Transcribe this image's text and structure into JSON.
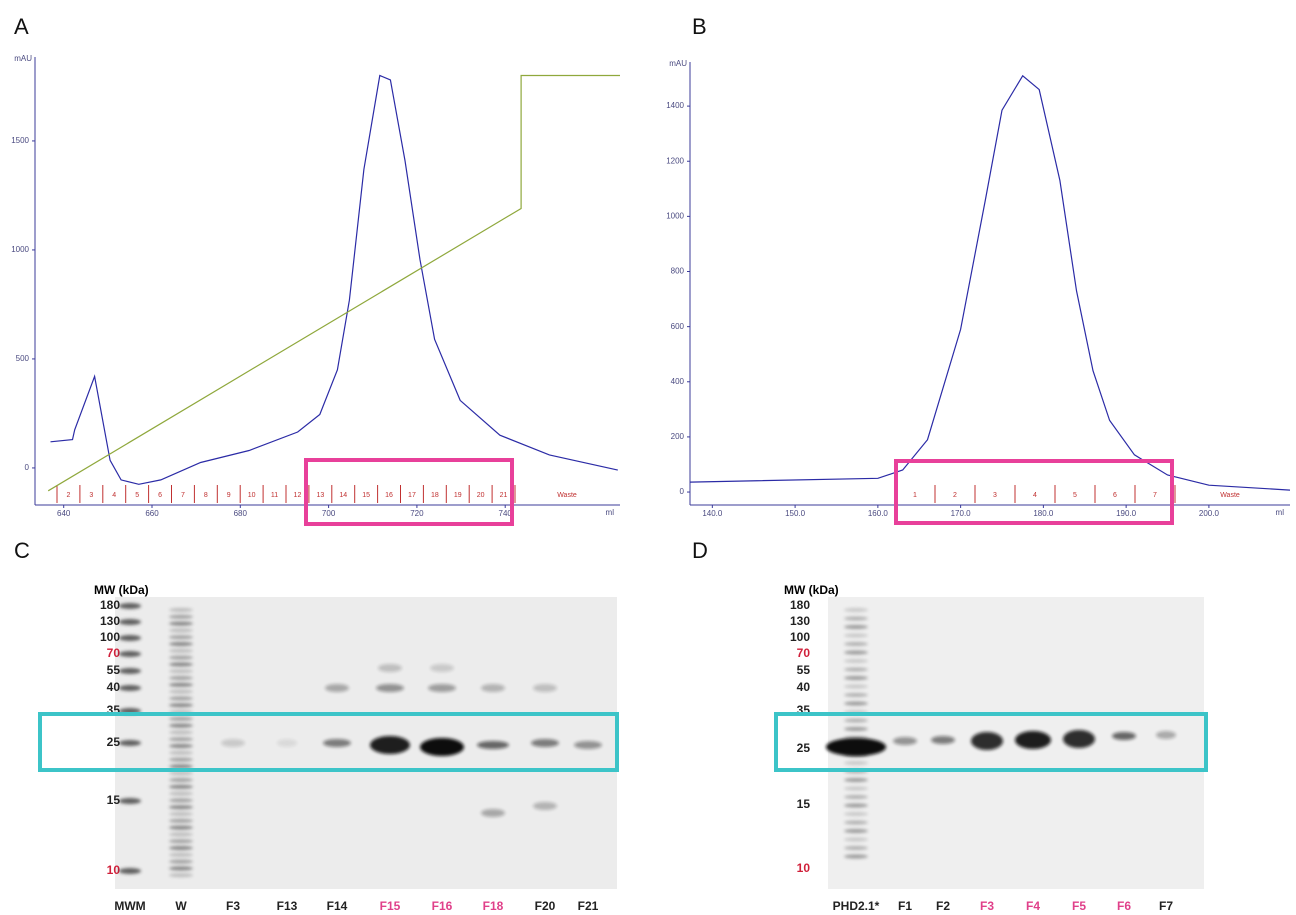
{
  "panel_labels": [
    "A",
    "B",
    "C",
    "D"
  ],
  "chart_data": [
    {
      "type": "line",
      "y_label": "mAU",
      "x_label": "ml",
      "xlim": [
        633.5,
        766
      ],
      "ylim": [
        -170,
        1885
      ],
      "xticks": [
        640,
        660,
        680,
        700,
        720,
        740
      ],
      "yticks": [
        0,
        500,
        1000,
        1500
      ],
      "fractions": [
        "2",
        "3",
        "4",
        "5",
        "6",
        "7",
        "8",
        "9",
        "10",
        "11",
        "12",
        "13",
        "14",
        "15",
        "16",
        "17",
        "18",
        "19",
        "20",
        "21",
        "Waste"
      ],
      "series": [
        {
          "color": "#2b2ba6",
          "x": [
            637,
            642,
            642.5,
            647,
            650.5,
            653,
            657,
            662,
            671,
            682,
            693,
            698,
            702,
            704.7,
            708,
            711.6,
            714,
            717.3,
            720.7,
            724,
            729.8,
            738.8,
            750,
            765.5
          ],
          "values": [
            120,
            130,
            175,
            420,
            35,
            -55,
            -75,
            -55,
            25,
            80,
            165,
            245,
            450,
            770,
            1370,
            1800,
            1780,
            1410,
            955,
            590,
            310,
            150,
            60,
            -10
          ]
        },
        {
          "color": "#8fa83c",
          "x": [
            636.5,
            743.6,
            743.6,
            766
          ],
          "values": [
            -105,
            1190,
            1800,
            1800
          ]
        }
      ]
    },
    {
      "type": "line",
      "y_label": "mAU",
      "x_label": "ml",
      "xlim": [
        137.3,
        209.8
      ],
      "ylim": [
        -47,
        1560
      ],
      "xticks": [
        {
          "value": 140,
          "label": "140.0"
        },
        {
          "value": 150,
          "label": "150.0"
        },
        {
          "value": 160,
          "label": "160.0"
        },
        {
          "value": 170,
          "label": "170.0"
        },
        {
          "value": 180,
          "label": "180.0"
        },
        {
          "value": 190,
          "label": "190.0"
        },
        {
          "value": 200,
          "label": "200.0"
        }
      ],
      "yticks": [
        0,
        200,
        400,
        600,
        800,
        1000,
        1200,
        1400
      ],
      "fractions": [
        "1",
        "2",
        "3",
        "4",
        "5",
        "6",
        "7",
        "Waste"
      ],
      "series": [
        {
          "color": "#2b2ba6",
          "x": [
            137.3,
            160,
            163,
            166,
            170,
            173,
            175,
            177.5,
            179.5,
            182,
            184,
            186,
            188,
            191,
            195,
            200,
            209.8
          ],
          "values": [
            36,
            50,
            80,
            190,
            590,
            1060,
            1385,
            1510,
            1460,
            1130,
            730,
            440,
            260,
            135,
            62,
            25,
            7
          ]
        }
      ]
    }
  ],
  "gels": [
    {
      "mw_title": "MW (kDa)",
      "mw_markers": [
        {
          "label": "180",
          "color": "#222"
        },
        {
          "label": "130",
          "color": "#222"
        },
        {
          "label": "100",
          "color": "#222"
        },
        {
          "label": "70",
          "color": "#d0203a"
        },
        {
          "label": "55",
          "color": "#222"
        },
        {
          "label": "40",
          "color": "#222"
        },
        {
          "label": "35",
          "color": "#222"
        },
        {
          "label": "25",
          "color": "#222"
        },
        {
          "label": "15",
          "color": "#222"
        },
        {
          "label": "10",
          "color": "#d0203a"
        }
      ],
      "lanes": [
        {
          "label": "MWM",
          "color": "#222"
        },
        {
          "label": "W",
          "color": "#222"
        },
        {
          "label": "F3",
          "color": "#222"
        },
        {
          "label": "F13",
          "color": "#222"
        },
        {
          "label": "F14",
          "color": "#222"
        },
        {
          "label": "F15",
          "color": "#e0408a"
        },
        {
          "label": "F16",
          "color": "#e0408a"
        },
        {
          "label": "F18",
          "color": "#e0408a"
        },
        {
          "label": "F20",
          "color": "#222"
        },
        {
          "label": "F21",
          "color": "#222"
        }
      ]
    },
    {
      "mw_title": "MW (kDa)",
      "mw_markers": [
        {
          "label": "180",
          "color": "#222"
        },
        {
          "label": "130",
          "color": "#222"
        },
        {
          "label": "100",
          "color": "#222"
        },
        {
          "label": "70",
          "color": "#d0203a"
        },
        {
          "label": "55",
          "color": "#222"
        },
        {
          "label": "40",
          "color": "#222"
        },
        {
          "label": "35",
          "color": "#222"
        },
        {
          "label": "25",
          "color": "#222"
        },
        {
          "label": "15",
          "color": "#222"
        },
        {
          "label": "10",
          "color": "#d0203a"
        }
      ],
      "lanes": [
        {
          "label": "PHD2.1*",
          "color": "#222"
        },
        {
          "label": "F1",
          "color": "#222"
        },
        {
          "label": "F2",
          "color": "#222"
        },
        {
          "label": "F3",
          "color": "#e0408a"
        },
        {
          "label": "F4",
          "color": "#e0408a"
        },
        {
          "label": "F5",
          "color": "#e0408a"
        },
        {
          "label": "F6",
          "color": "#e0408a"
        },
        {
          "label": "F7",
          "color": "#222"
        }
      ]
    }
  ]
}
